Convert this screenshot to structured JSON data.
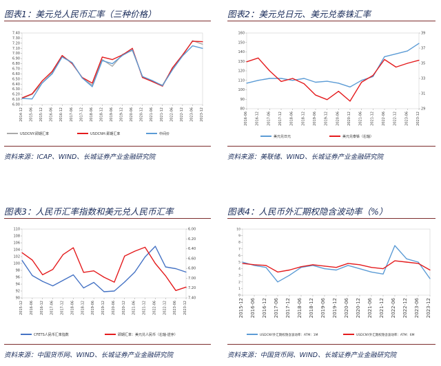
{
  "panels": [
    {
      "title": "图表1：美元兑人民币汇率（三种价格）",
      "source": "资料来源：ICAP、WIND、长城证券产业金融研究院"
    },
    {
      "title": "图表2：美元兑日元、美元兑泰铢汇率",
      "source": "资料来源：美联储、WIND、长城证券产业金融研究院"
    },
    {
      "title": "图表3：人民币汇率指数和美元兑人民币汇率",
      "source": "资料来源：中国货币网、WIND、长城证券产业金融研究院"
    },
    {
      "title": "图表4：人民币外汇期权隐含波动率（%）",
      "source": "资料来源：中国货币网、WIND、长城证券产业金融研究院"
    }
  ],
  "chart_data": [
    {
      "type": "line",
      "ylim": [
        6.0,
        7.4
      ],
      "yticks": [
        "6.00",
        "6.10",
        "6.20",
        "6.30",
        "6.40",
        "6.50",
        "6.60",
        "6.70",
        "6.80",
        "6.90",
        "7.00",
        "7.10",
        "7.20",
        "7.30",
        "7.40"
      ],
      "xticks": [
        "2014-12",
        "2015-06",
        "2015-12",
        "2016-06",
        "2016-12",
        "2017-06",
        "2017-12",
        "2018-06",
        "2018-12",
        "2019-06",
        "2019-12",
        "2020-06",
        "2020-12",
        "2021-06",
        "2021-12",
        "2022-06",
        "2022-12",
        "2023-06",
        "2023-12"
      ],
      "series": [
        {
          "name": "USDCNY:即期汇率",
          "color": "#a9a9a9",
          "values": [
            6.12,
            6.2,
            6.42,
            6.62,
            6.95,
            6.82,
            6.52,
            6.38,
            6.88,
            6.75,
            6.98,
            7.06,
            6.55,
            6.45,
            6.38,
            6.7,
            6.95,
            7.25,
            7.18
          ]
        },
        {
          "name": "USDCNH:即期汇率",
          "color": "#e41a1c",
          "values": [
            6.13,
            6.21,
            6.46,
            6.65,
            6.96,
            6.8,
            6.53,
            6.42,
            6.93,
            6.88,
            6.97,
            7.1,
            6.53,
            6.45,
            6.36,
            6.72,
            6.97,
            7.24,
            7.23
          ]
        },
        {
          "name": "中间价",
          "color": "#5b9bd5",
          "values": [
            6.12,
            6.11,
            6.42,
            6.6,
            6.93,
            6.82,
            6.52,
            6.35,
            6.86,
            6.8,
            6.96,
            7.07,
            6.55,
            6.47,
            6.37,
            6.68,
            6.95,
            7.15,
            7.1
          ]
        }
      ]
    },
    {
      "type": "line",
      "ylim": [
        80,
        160
      ],
      "yticks": [
        "80",
        "90",
        "100",
        "110",
        "120",
        "130",
        "140",
        "150",
        "160"
      ],
      "y2lim": [
        29,
        39
      ],
      "y2ticks": [
        "29",
        "31",
        "33",
        "35",
        "37",
        "39"
      ],
      "xticks": [
        "2016-06",
        "2016-12",
        "2017-06",
        "2017-12",
        "2018-06",
        "2018-12",
        "2019-06",
        "2019-12",
        "2020-06",
        "2020-12",
        "2021-06",
        "2021-12",
        "2022-06",
        "2022-12",
        "2023-06",
        "2023-12"
      ],
      "series": [
        {
          "name": "美元兑日元",
          "color": "#5b9bd5",
          "axis": "left",
          "values": [
            107,
            110,
            112,
            112,
            110,
            112,
            108,
            109,
            107,
            103,
            110,
            114,
            135,
            138,
            141,
            149
          ]
        },
        {
          "name": "美元兑泰铢（右轴）",
          "color": "#e41a1c",
          "axis": "right",
          "values": [
            35.2,
            35.7,
            34.0,
            32.6,
            33.0,
            32.3,
            30.8,
            30.2,
            31.3,
            30.0,
            32.5,
            33.4,
            35.5,
            34.5,
            35.0,
            35.4
          ]
        }
      ]
    },
    {
      "type": "line",
      "ylim": [
        90,
        110
      ],
      "yticks": [
        "90",
        "92",
        "94",
        "96",
        "98",
        "100",
        "102",
        "104",
        "106",
        "108",
        "110"
      ],
      "y2lim": [
        6.0,
        7.4
      ],
      "y2ticks": [
        "6.00",
        "6.20",
        "6.40",
        "6.60",
        "6.80",
        "7.00",
        "7.20",
        "7.40"
      ],
      "xticks": [
        "2015-12",
        "2016-06",
        "2016-12",
        "2017-06",
        "2017-12",
        "2018-06",
        "2018-12",
        "2019-06",
        "2019-12",
        "2020-06",
        "2020-12",
        "2021-06",
        "2021-12",
        "2022-06",
        "2022-12",
        "2023-06",
        "2023-12"
      ],
      "series": [
        {
          "name": "CFETS人民币汇率指数",
          "color": "#4472c4",
          "axis": "left",
          "values": [
            100.9,
            96.5,
            94.8,
            93.5,
            95.1,
            96.7,
            92.9,
            94.5,
            91.8,
            92.0,
            94.6,
            97.5,
            101.9,
            105.0,
            99.0,
            98.5,
            97.5
          ]
        },
        {
          "name": "即期汇率：美元兑人民币（右轴-逆序）",
          "color": "#e41a1c",
          "axis": "right",
          "values": [
            6.48,
            6.63,
            6.93,
            6.82,
            6.52,
            6.38,
            6.88,
            6.85,
            6.98,
            7.08,
            6.55,
            6.45,
            6.37,
            6.7,
            6.95,
            7.25,
            7.18
          ]
        }
      ]
    },
    {
      "type": "line",
      "ylim": [
        0,
        10
      ],
      "yticks": [
        "0",
        "1",
        "2",
        "3",
        "4",
        "5",
        "6",
        "7",
        "8",
        "9",
        "10"
      ],
      "xticks": [
        "2015-12",
        "2016-06",
        "2016-12",
        "2017-06",
        "2017-12",
        "2018-06",
        "2018-12",
        "2019-06",
        "2019-12",
        "2020-06",
        "2020-12",
        "2021-06",
        "2021-12",
        "2022-06",
        "2022-12",
        "2023-06",
        "2023-12"
      ],
      "series": [
        {
          "name": "USDCNY外汇期权隐含波动率：ATM：1M",
          "color": "#5b9bd5",
          "values": [
            5.0,
            4.5,
            4.2,
            2.0,
            3.0,
            4.2,
            4.5,
            4.0,
            3.8,
            4.5,
            4.0,
            3.5,
            3.2,
            7.5,
            5.5,
            5.0,
            2.5
          ]
        },
        {
          "name": "USDCNY外汇期权隐含波动率：ATM：6M",
          "color": "#e41a1c",
          "values": [
            4.8,
            4.6,
            4.5,
            3.5,
            3.8,
            4.3,
            4.6,
            4.4,
            4.2,
            4.8,
            4.6,
            4.2,
            4.0,
            5.2,
            5.0,
            4.8,
            3.8
          ]
        }
      ]
    }
  ]
}
